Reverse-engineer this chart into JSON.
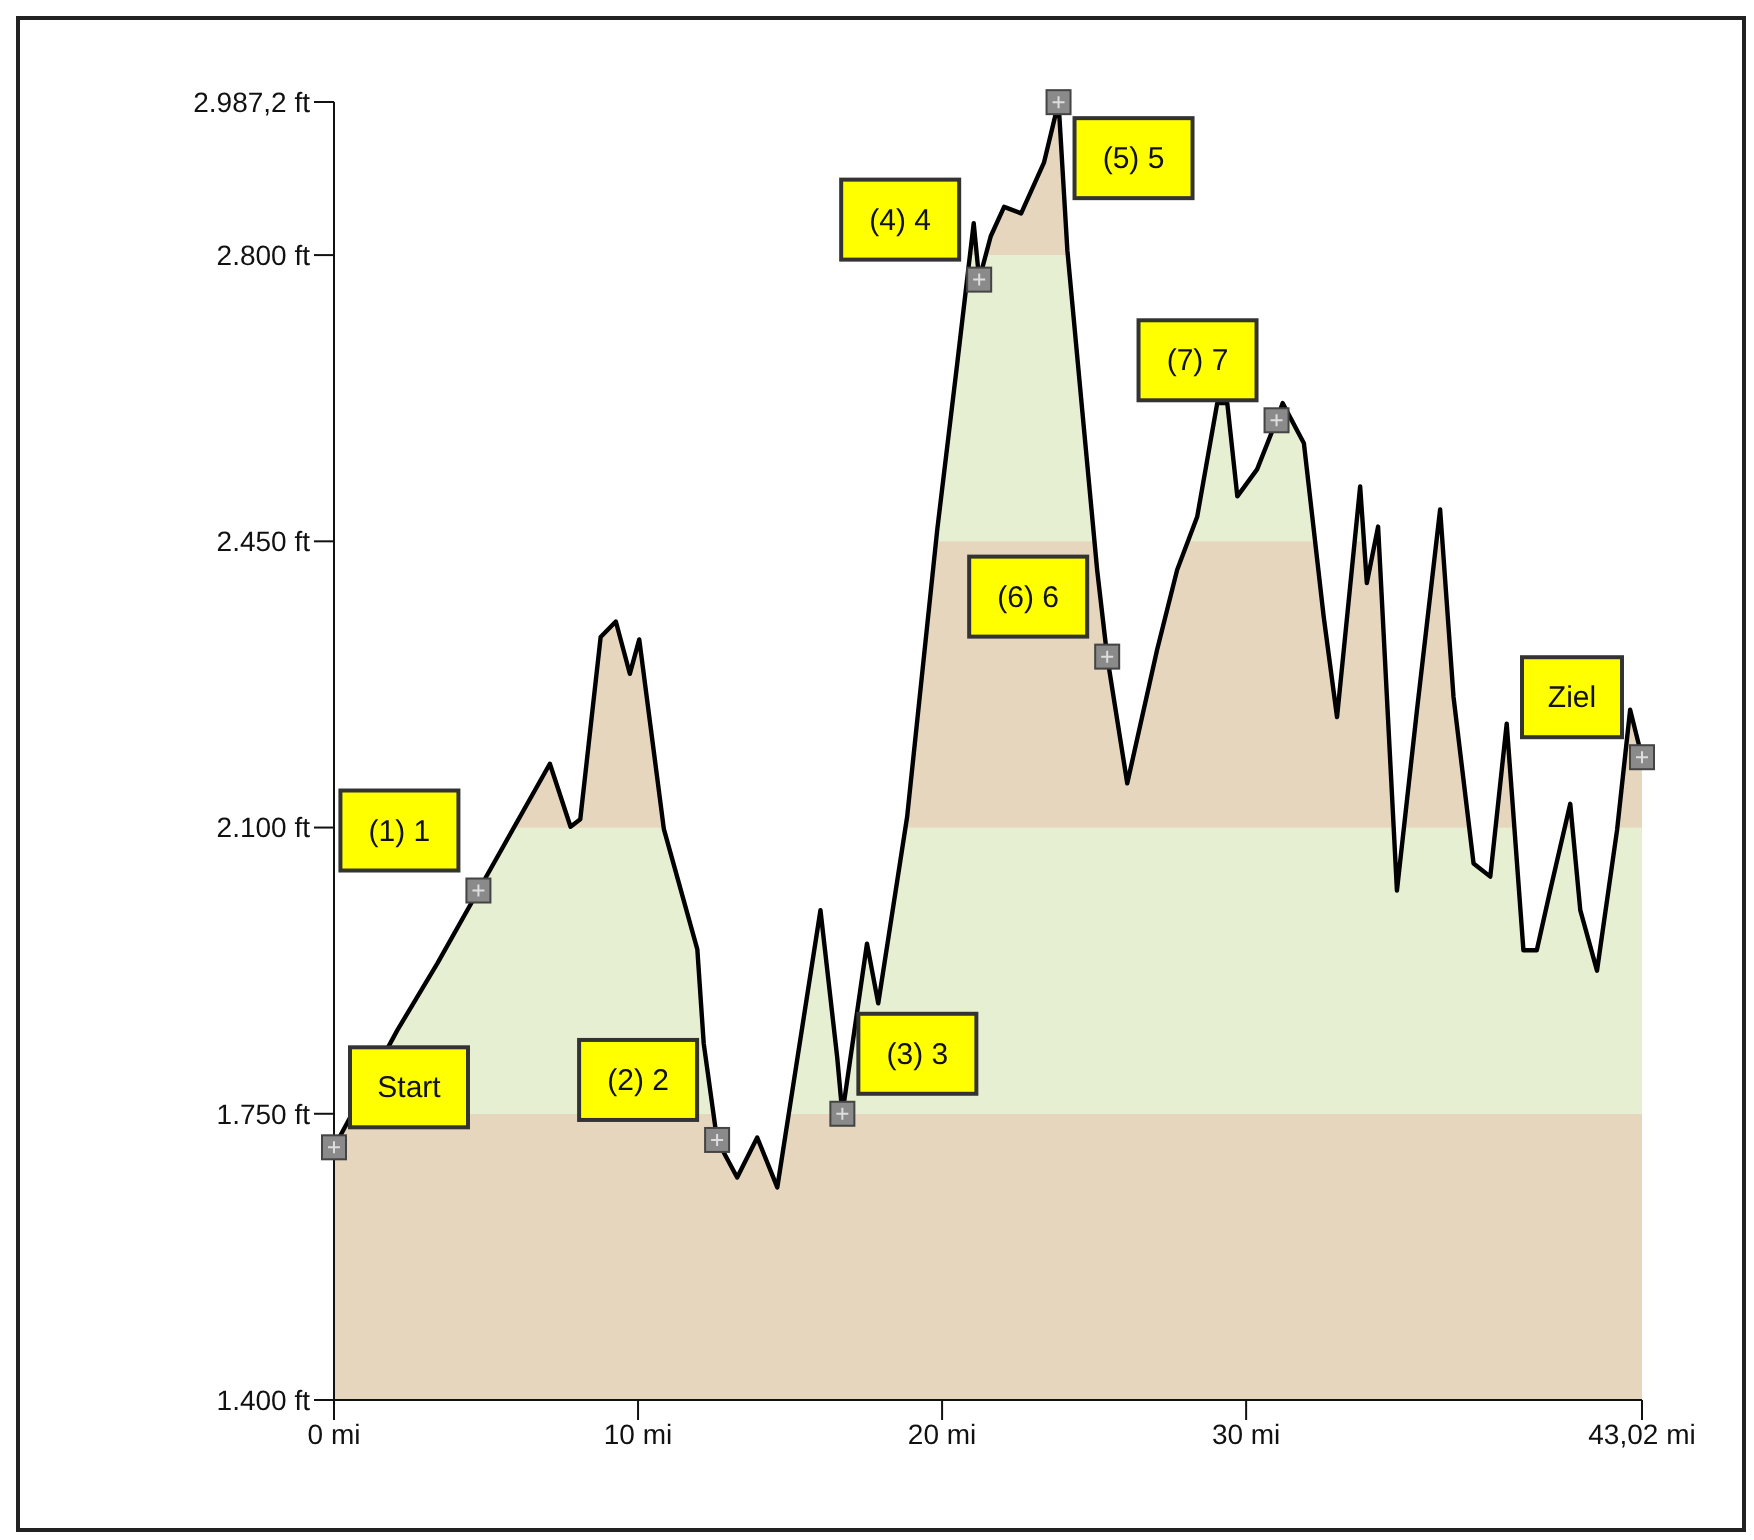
{
  "chart_data": {
    "type": "area",
    "color": "#000000",
    "x": [
      0,
      2.08,
      3.4,
      4.75,
      7.1,
      7.78,
      8.1,
      8.77,
      9.27,
      9.73,
      10.04,
      10.85,
      11.95,
      12.16,
      12.6,
      13.26,
      13.92,
      14.58,
      16.0,
      16.55,
      16.72,
      17.53,
      17.9,
      18.85,
      19.84,
      20.5,
      21.04,
      21.22,
      21.6,
      22.04,
      22.6,
      23.35,
      23.83,
      24.12,
      24.67,
      25.1,
      25.43,
      26.09,
      27.07,
      27.73,
      28.39,
      29.05,
      29.38,
      29.71,
      30.36,
      31.0,
      31.2,
      31.9,
      32.55,
      32.99,
      33.75,
      33.97,
      34.34,
      34.96,
      35.62,
      36.38,
      36.82,
      37.48,
      38.03,
      38.57,
      39.12,
      39.56,
      40.0,
      40.66,
      40.99,
      41.54,
      42.2,
      42.63,
      43.02
    ],
    "values": [
      1709,
      1852,
      1934,
      2023,
      2178,
      2101,
      2110,
      2333,
      2352,
      2288,
      2330,
      2098,
      1951,
      1836,
      1718,
      1672,
      1721,
      1660,
      1999,
      1819,
      1750,
      1958,
      1885,
      2113,
      2464,
      2668,
      2839,
      2770,
      2823,
      2859,
      2851,
      2913,
      2987,
      2806,
      2586,
      2415,
      2309,
      2154,
      2317,
      2415,
      2480,
      2619,
      2619,
      2505,
      2538,
      2598,
      2619,
      2570,
      2358,
      2235,
      2517,
      2399,
      2468,
      2023,
      2244,
      2489,
      2260,
      2056,
      2040,
      2227,
      1950,
      1950,
      2023,
      2129,
      1999,
      1925,
      2097,
      2244,
      2186
    ],
    "xlim": [
      0,
      43.02
    ],
    "xticks": [
      {
        "value": 0,
        "label": "0 mi"
      },
      {
        "value": 10,
        "label": "10 mi"
      },
      {
        "value": 20,
        "label": "20 mi"
      },
      {
        "value": 30,
        "label": "30 mi"
      },
      {
        "value": 43.02,
        "label": "43,02 mi"
      }
    ],
    "ylim": [
      1400,
      2987.2
    ],
    "yticks": [
      {
        "value": 1400,
        "label": "1.400 ft"
      },
      {
        "value": 1750,
        "label": "1.750 ft"
      },
      {
        "value": 2100,
        "label": "2.100 ft"
      },
      {
        "value": 2450,
        "label": "2.450 ft"
      },
      {
        "value": 2800,
        "label": "2.800 ft"
      },
      {
        "value": 2987.2,
        "label": "2.987,2 ft"
      }
    ],
    "bands": [
      {
        "axis": "y",
        "from": 1400,
        "to": 1750,
        "color": "#e6d6bd"
      },
      {
        "axis": "y",
        "from": 1750,
        "to": 2100,
        "color": "#e7efd3"
      },
      {
        "axis": "y",
        "from": 2100,
        "to": 2450,
        "color": "#e6d6bd"
      },
      {
        "axis": "y",
        "from": 2450,
        "to": 2800,
        "color": "#e7efd3"
      },
      {
        "axis": "y",
        "from": 2800,
        "to": 2987.2,
        "color": "#e6d6bd"
      }
    ],
    "grid": false,
    "legend": false,
    "annotations": [
      {
        "text": "Start",
        "x": 0,
        "y": 1709
      },
      {
        "text": "(1) 1",
        "x": 4.75,
        "y": 2023
      },
      {
        "text": "(2) 2",
        "x": 12.6,
        "y": 1718
      },
      {
        "text": "(3) 3",
        "x": 16.72,
        "y": 1750
      },
      {
        "text": "(4) 4",
        "x": 21.22,
        "y": 2770
      },
      {
        "text": "(5) 5",
        "x": 23.83,
        "y": 2987
      },
      {
        "text": "(6) 6",
        "x": 25.43,
        "y": 2309
      },
      {
        "text": "(7) 7",
        "x": 31.0,
        "y": 2598
      },
      {
        "text": "Ziel",
        "x": 43.02,
        "y": 2186
      }
    ]
  }
}
